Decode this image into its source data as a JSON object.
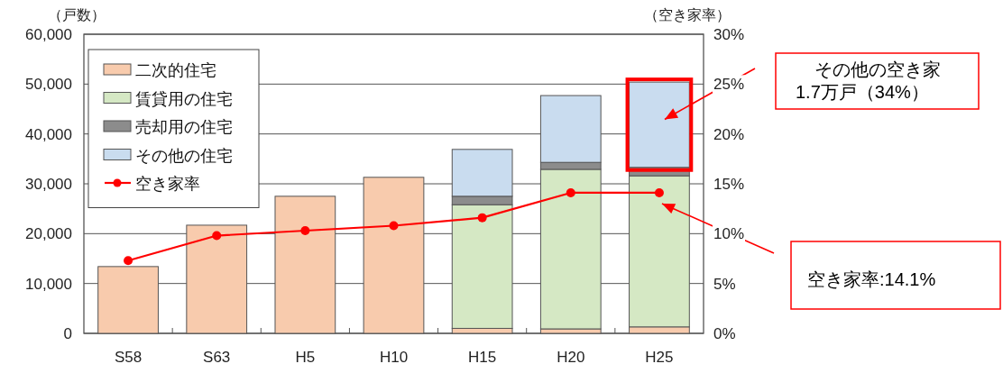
{
  "chart_data": {
    "type": "bar",
    "stacked": true,
    "xlabel": null,
    "ylabel": "（戸数）",
    "y2label": "（空き家率）",
    "categories": [
      "S58",
      "S63",
      "H5",
      "H10",
      "H15",
      "H20",
      "H25"
    ],
    "series": [
      {
        "name": "二次的住宅",
        "color": "#f8cbad",
        "values": [
          13400,
          21700,
          27500,
          31300,
          1000,
          900,
          1300
        ]
      },
      {
        "name": "賃貸用の住宅",
        "color": "#d5e8c4",
        "values": [
          null,
          null,
          null,
          null,
          24800,
          32000,
          30300
        ]
      },
      {
        "name": "売却用の住宅",
        "color": "#8c8c8c",
        "values": [
          null,
          null,
          null,
          null,
          1700,
          1400,
          1700
        ]
      },
      {
        "name": "その他の住宅",
        "color": "#c9dcef",
        "values": [
          null,
          null,
          null,
          null,
          9400,
          13400,
          17100
        ]
      },
      {
        "name": "空き家率",
        "type": "line",
        "axis": "y2",
        "color": "#ff0000",
        "marker": "circle",
        "values": [
          7.3,
          9.8,
          10.3,
          10.8,
          11.6,
          14.1,
          14.1
        ]
      }
    ],
    "ylim": [
      0,
      60000
    ],
    "yticks": [
      0,
      {
        "value": 10000,
        "label": "10,000"
      },
      {
        "value": 20000,
        "label": "20,000"
      },
      {
        "value": 30000,
        "label": "30,000"
      },
      {
        "value": 40000,
        "label": "40,000"
      },
      {
        "value": 50000,
        "label": "50,000"
      },
      {
        "value": 60000,
        "label": "60,000"
      }
    ],
    "y2lim": [
      0,
      30
    ],
    "y2ticks": [
      {
        "value": 0,
        "label": "0%"
      },
      {
        "value": 5,
        "label": "5%"
      },
      {
        "value": 10,
        "label": "10%"
      },
      {
        "value": 15,
        "label": "15%"
      },
      {
        "value": 20,
        "label": "20%"
      },
      {
        "value": 25,
        "label": "25%"
      },
      {
        "value": 30,
        "label": "30%"
      }
    ],
    "grid": "y",
    "legend": "top left",
    "annotations": [
      "その他の空き家\n1.7万戸（34%）",
      "空き家率:14.1%"
    ]
  }
}
